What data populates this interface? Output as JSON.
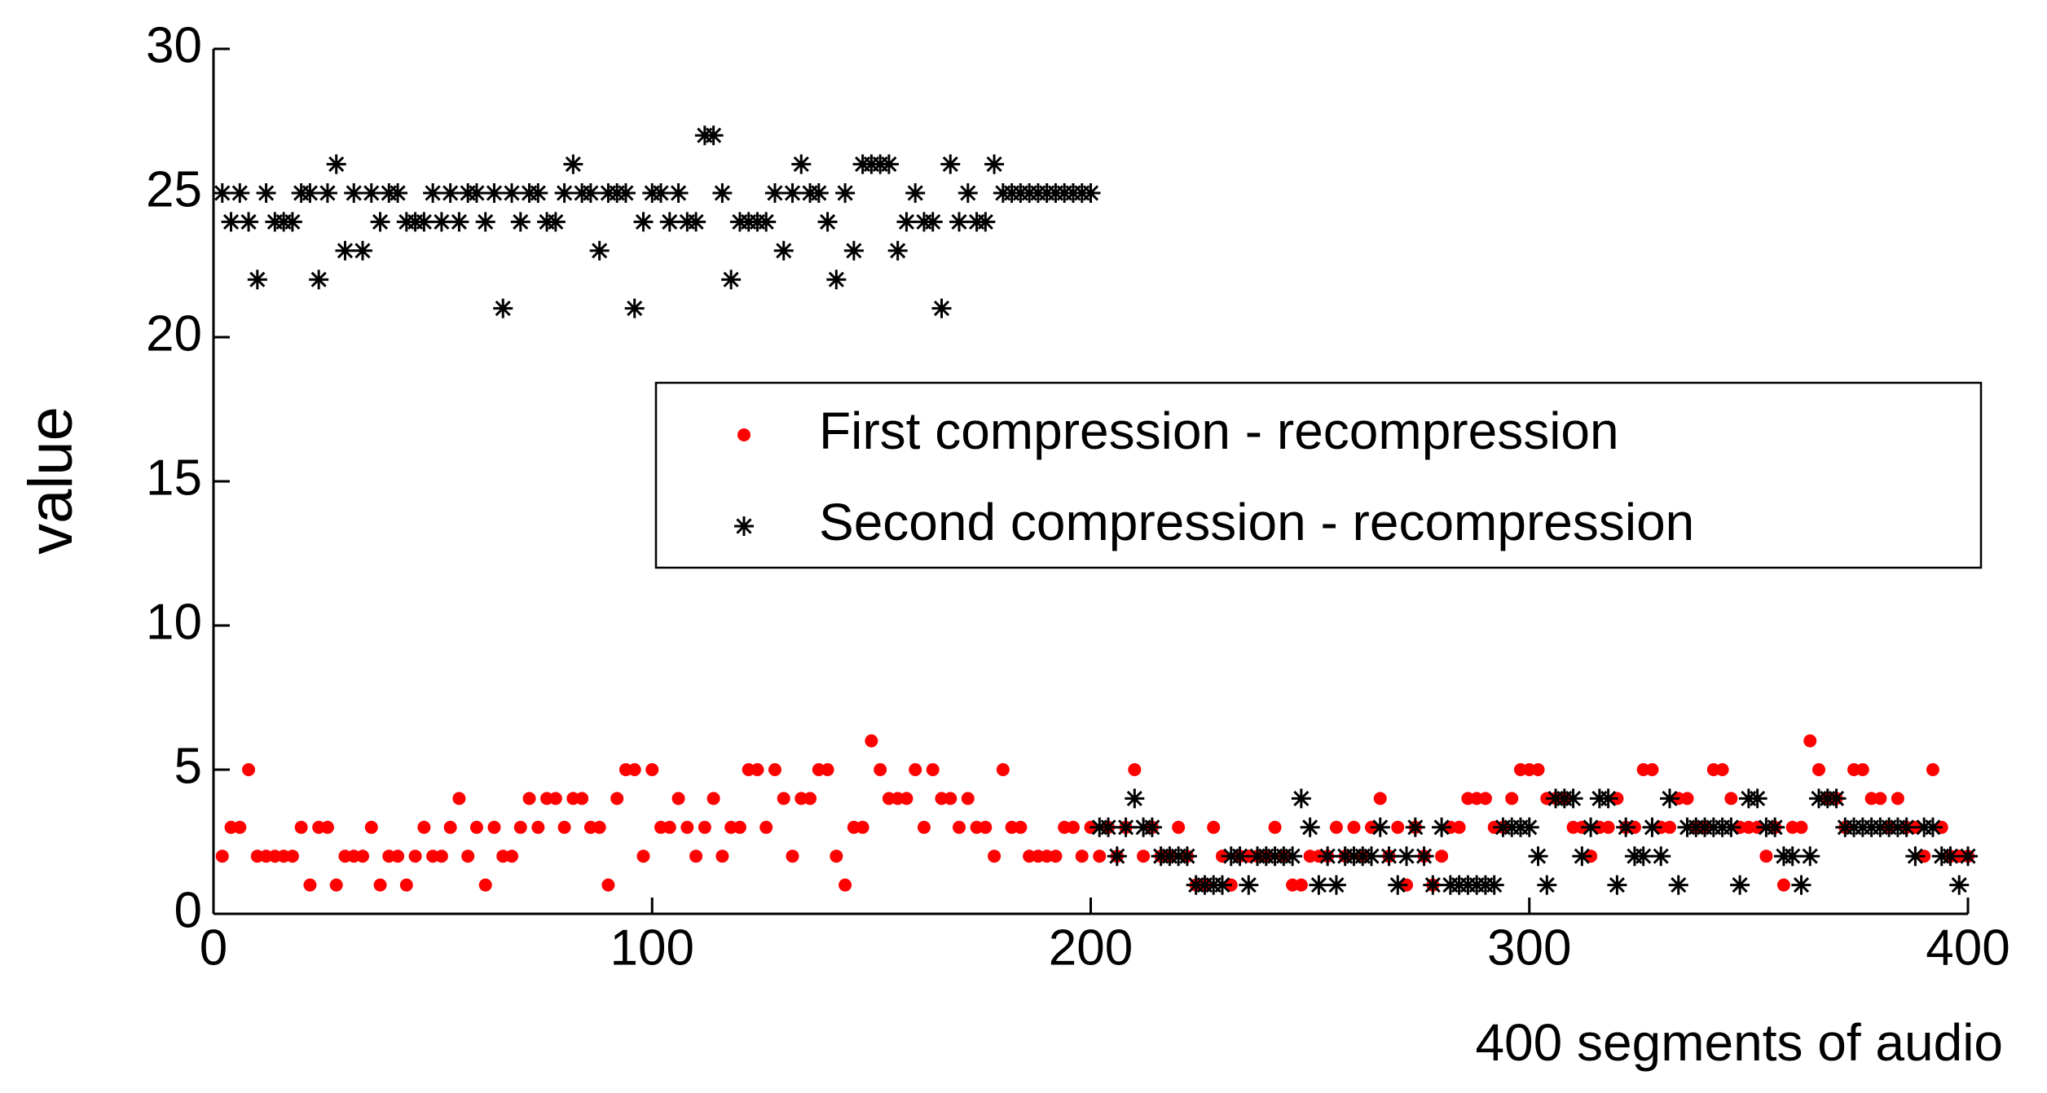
{
  "chart_data": {
    "type": "scatter",
    "xlabel": "400 segments of audio",
    "ylabel": "value",
    "xlim": [
      0,
      400
    ],
    "ylim": [
      0,
      30
    ],
    "xticks": [
      0,
      100,
      200,
      300,
      400
    ],
    "yticks": [
      0,
      5,
      10,
      15,
      20,
      25,
      30
    ],
    "legend": "upper right",
    "x": [
      2,
      4,
      6,
      8,
      10,
      12,
      14,
      16,
      18,
      20,
      22,
      24,
      26,
      28,
      30,
      32,
      34,
      36,
      38,
      40,
      42,
      44,
      46,
      48,
      50,
      52,
      54,
      56,
      58,
      60,
      62,
      64,
      66,
      68,
      70,
      72,
      74,
      76,
      78,
      80,
      82,
      84,
      86,
      88,
      90,
      92,
      94,
      96,
      98,
      100,
      102,
      104,
      106,
      108,
      110,
      112,
      114,
      116,
      118,
      120,
      122,
      124,
      126,
      128,
      130,
      132,
      134,
      136,
      138,
      140,
      142,
      144,
      146,
      148,
      150,
      152,
      154,
      156,
      158,
      160,
      162,
      164,
      166,
      168,
      170,
      172,
      174,
      176,
      178,
      180,
      182,
      184,
      186,
      188,
      190,
      192,
      194,
      196,
      198,
      200,
      202,
      204,
      206,
      208,
      210,
      212,
      214,
      216,
      218,
      220,
      222,
      224,
      226,
      228,
      230,
      232,
      234,
      236,
      238,
      240,
      242,
      244,
      246,
      248,
      250,
      252,
      254,
      256,
      258,
      260,
      262,
      264,
      266,
      268,
      270,
      272,
      274,
      276,
      278,
      280,
      282,
      284,
      286,
      288,
      290,
      292,
      294,
      296,
      298,
      300,
      302,
      304,
      306,
      308,
      310,
      312,
      314,
      316,
      318,
      320,
      322,
      324,
      326,
      328,
      330,
      332,
      334,
      336,
      338,
      340,
      342,
      344,
      346,
      348,
      350,
      352,
      354,
      356,
      358,
      360,
      362,
      364,
      366,
      368,
      370,
      372,
      374,
      376,
      378,
      380,
      382,
      384,
      386,
      388,
      390,
      392,
      394,
      396,
      398,
      400
    ],
    "series": [
      {
        "name": "First compression - recompression",
        "color": "#ff0000",
        "marker": "dot",
        "values": [
          2,
          3,
          3,
          5,
          2,
          2,
          2,
          2,
          2,
          3,
          1,
          3,
          3,
          1,
          2,
          2,
          2,
          3,
          1,
          2,
          2,
          1,
          2,
          3,
          2,
          2,
          3,
          4,
          2,
          3,
          1,
          3,
          2,
          2,
          3,
          4,
          3,
          4,
          4,
          3,
          4,
          4,
          3,
          3,
          1,
          4,
          5,
          5,
          2,
          5,
          3,
          3,
          4,
          3,
          2,
          3,
          4,
          2,
          3,
          3,
          5,
          5,
          3,
          5,
          4,
          2,
          4,
          4,
          5,
          5,
          2,
          1,
          3,
          3,
          6,
          5,
          4,
          4,
          4,
          5,
          3,
          5,
          4,
          4,
          3,
          4,
          3,
          3,
          2,
          5,
          3,
          3,
          2,
          2,
          2,
          2,
          3,
          3,
          2,
          3,
          2,
          3,
          2,
          3,
          5,
          2,
          3,
          2,
          2,
          3,
          2,
          1,
          1,
          3,
          2,
          1,
          2,
          2,
          2,
          2,
          3,
          2,
          1,
          1,
          2,
          2,
          2,
          3,
          2,
          3,
          2,
          3,
          4,
          2,
          3,
          1,
          3,
          2,
          1,
          2,
          3,
          3,
          4,
          4,
          4,
          3,
          3,
          4,
          5,
          5,
          5,
          4,
          4,
          4,
          3,
          3,
          2,
          3,
          3,
          4,
          3,
          3,
          5,
          5,
          3,
          3,
          4,
          4,
          3,
          3,
          5,
          5,
          4,
          3,
          3,
          3,
          2,
          3,
          1,
          3,
          3,
          6,
          5,
          4,
          4,
          3,
          5,
          5,
          4,
          4,
          3,
          4,
          3,
          3,
          2,
          5,
          3,
          2,
          2,
          2
        ]
      },
      {
        "name": "Second compression - recompression",
        "color": "#000000",
        "marker": "asterisk",
        "values": [
          25,
          24,
          25,
          24,
          22,
          25,
          24,
          24,
          24,
          25,
          25,
          22,
          25,
          26,
          23,
          25,
          23,
          25,
          24,
          25,
          25,
          24,
          24,
          24,
          25,
          24,
          25,
          24,
          25,
          25,
          24,
          25,
          21,
          25,
          24,
          25,
          25,
          24,
          24,
          25,
          26,
          25,
          25,
          23,
          25,
          25,
          25,
          21,
          24,
          25,
          25,
          24,
          25,
          24,
          24,
          27,
          27,
          25,
          22,
          24,
          24,
          24,
          24,
          25,
          23,
          25,
          26,
          25,
          25,
          24,
          22,
          25,
          23,
          26,
          26,
          26,
          26,
          23,
          24,
          25,
          24,
          24,
          21,
          26,
          24,
          25,
          24,
          24,
          26,
          25,
          25,
          25,
          25,
          25,
          25,
          25,
          25,
          25,
          25,
          25,
          3,
          3,
          2,
          3,
          4,
          3,
          3,
          2,
          2,
          2,
          2,
          1,
          1,
          1,
          1,
          2,
          2,
          1,
          2,
          2,
          2,
          2,
          2,
          4,
          3,
          1,
          2,
          1,
          2,
          2,
          2,
          2,
          3,
          2,
          1,
          2,
          3,
          2,
          1,
          3,
          1,
          1,
          1,
          1,
          1,
          1,
          3,
          3,
          3,
          3,
          2,
          1,
          4,
          4,
          4,
          2,
          3,
          4,
          4,
          1,
          3,
          2,
          2,
          3,
          2,
          4,
          1,
          3,
          3,
          3,
          3,
          3,
          3,
          1,
          4,
          4,
          3,
          3,
          2,
          2,
          1,
          2,
          4,
          4,
          4,
          3,
          3,
          3,
          3,
          3,
          3,
          3,
          3,
          2,
          3,
          3,
          2,
          2,
          1,
          2
        ]
      }
    ]
  }
}
